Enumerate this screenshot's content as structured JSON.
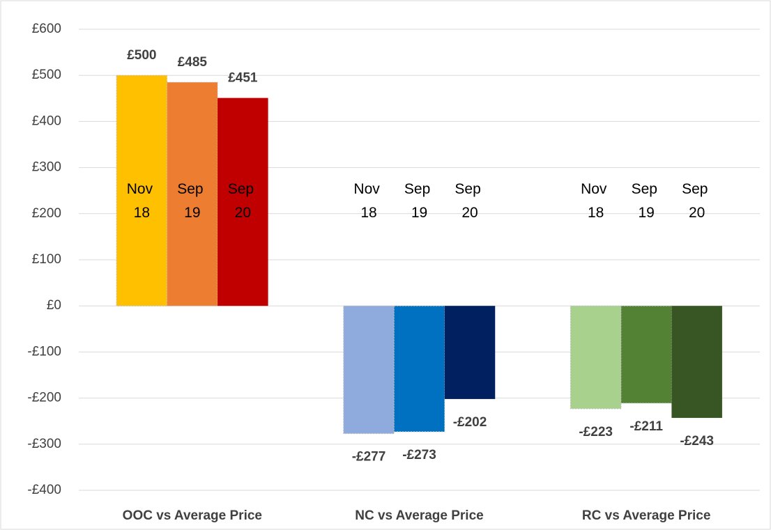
{
  "chart_data": {
    "type": "bar",
    "categories": [
      "OOC vs Average Price",
      "NC vs Average Price",
      "RC vs Average Price"
    ],
    "series": [
      {
        "name": "Nov 18",
        "colors": [
          "#ffc000",
          "#8faadc",
          "#a9d18e"
        ],
        "values": [
          500,
          -277,
          -223
        ],
        "value_labels": [
          "£500",
          "-£277",
          "-£223"
        ]
      },
      {
        "name": "Sep 19",
        "colors": [
          "#ed7d31",
          "#0070c0",
          "#548235"
        ],
        "values": [
          485,
          -273,
          -211
        ],
        "value_labels": [
          "£485",
          "-£273",
          "-£211"
        ]
      },
      {
        "name": "Sep 20",
        "colors": [
          "#c00000",
          "#002060",
          "#375623"
        ],
        "values": [
          451,
          -202,
          -243
        ],
        "value_labels": [
          "£451",
          "-£202",
          "-£243"
        ]
      }
    ],
    "ylim": [
      -400,
      600
    ],
    "yticks": [
      {
        "value": -400,
        "label": "-£400"
      },
      {
        "value": -300,
        "label": "-£300"
      },
      {
        "value": -200,
        "label": "-£200"
      },
      {
        "value": -100,
        "label": "-£100"
      },
      {
        "value": 0,
        "label": "£0"
      },
      {
        "value": 100,
        "label": "£100"
      },
      {
        "value": 200,
        "label": "£200"
      },
      {
        "value": 300,
        "label": "£300"
      },
      {
        "value": 400,
        "label": "£400"
      },
      {
        "value": 500,
        "label": "£500"
      },
      {
        "value": 600,
        "label": "£600"
      }
    ],
    "grid": true
  }
}
